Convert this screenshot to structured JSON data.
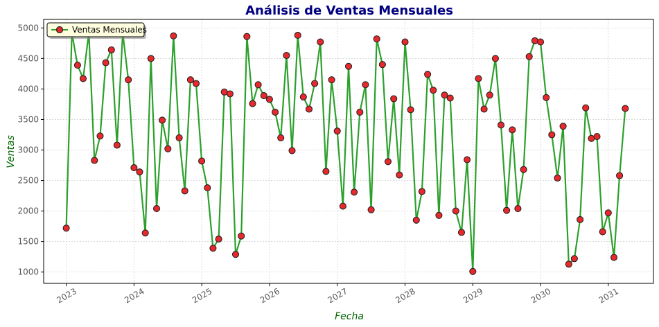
{
  "chart_data": {
    "type": "line",
    "title": "Análisis de Ventas Mensuales",
    "xlabel": "Fecha",
    "ylabel": "Ventas",
    "x_start": "2023-01",
    "x_frequency": "monthly",
    "x_ticks": [
      "2023",
      "2024",
      "2025",
      "2026",
      "2027",
      "2028",
      "2029",
      "2030",
      "2031"
    ],
    "y_ticks": [
      1000,
      1500,
      2000,
      2500,
      3000,
      3500,
      4000,
      4500,
      5000
    ],
    "xlim": [
      "2022-09",
      "2031-09"
    ],
    "ylim": [
      815,
      5140
    ],
    "grid": true,
    "legend_position": "top-left",
    "series": [
      {
        "name": "Ventas Mensuales",
        "line_color": "#2ca02c",
        "marker_color": "#e8292c",
        "marker_edge": "#222222",
        "values": [
          1720,
          4920,
          4390,
          4170,
          4920,
          2830,
          3230,
          4430,
          4640,
          3080,
          4920,
          4150,
          2710,
          2640,
          1640,
          4500,
          2040,
          3490,
          3020,
          4870,
          3200,
          2330,
          4150,
          4090,
          2820,
          2380,
          1390,
          1540,
          3950,
          3920,
          1290,
          1590,
          4860,
          3760,
          4070,
          3890,
          3830,
          3620,
          3200,
          4550,
          2990,
          4880,
          3870,
          3670,
          4090,
          4770,
          2650,
          4150,
          3310,
          2080,
          4370,
          2310,
          3620,
          4070,
          2020,
          4820,
          4400,
          2810,
          3840,
          2590,
          4770,
          3660,
          1850,
          2320,
          4240,
          3980,
          1930,
          3900,
          3850,
          2000,
          1650,
          2840,
          1010,
          4170,
          3670,
          3900,
          4500,
          3410,
          2010,
          3330,
          2040,
          2680,
          4530,
          4790,
          4770,
          3860,
          3250,
          2540,
          3390,
          1130,
          1220,
          1860,
          3690,
          3190,
          3220,
          1660,
          1970,
          1240,
          2580,
          3680
        ]
      }
    ]
  },
  "colors": {
    "title": "#000080",
    "axis_label": "#006400",
    "grid": "#cccccc",
    "legend_bg": "#ffffe0"
  }
}
